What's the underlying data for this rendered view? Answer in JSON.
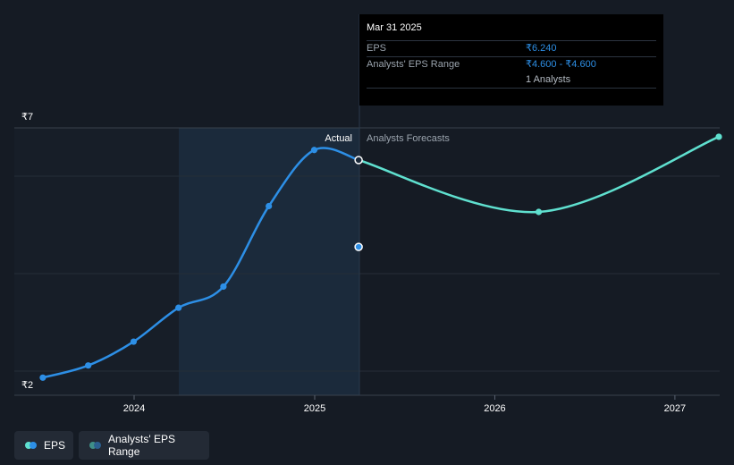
{
  "colors": {
    "background": "#151b24",
    "actual_line": "#2d8fe6",
    "forecast_line": "#5fe0cf",
    "range_marker": "#2d8fe6",
    "gridline": "#2a313b",
    "actual_band": "#1b2a3b"
  },
  "chart_data": {
    "type": "line",
    "y_ticks": [
      "₹7",
      "₹2"
    ],
    "ylim": [
      2,
      7
    ],
    "x_ticks": [
      "2024",
      "2025",
      "2026",
      "2027"
    ],
    "divider_labels": {
      "actual": "Actual",
      "forecast": "Analysts Forecasts"
    },
    "series": [
      {
        "name": "EPS",
        "kind": "actual",
        "points": [
          {
            "x": "2023-06-30",
            "y": 2.13
          },
          {
            "x": "2023-09-30",
            "y": 2.36
          },
          {
            "x": "2023-12-31",
            "y": 2.81
          },
          {
            "x": "2024-03-31",
            "y": 3.45
          },
          {
            "x": "2024-06-30",
            "y": 3.85
          },
          {
            "x": "2024-09-30",
            "y": 5.37
          },
          {
            "x": "2024-12-31",
            "y": 6.43
          },
          {
            "x": "2025-03-31",
            "y": 6.24
          }
        ]
      },
      {
        "name": "EPS",
        "kind": "forecast",
        "points": [
          {
            "x": "2025-03-31",
            "y": 6.24
          },
          {
            "x": "2026-03-31",
            "y": 5.26
          },
          {
            "x": "2027-03-31",
            "y": 6.68
          }
        ]
      },
      {
        "name": "Analysts' EPS Range",
        "kind": "range",
        "points": [
          {
            "x": "2025-03-31",
            "low": 4.6,
            "high": 4.6
          }
        ]
      }
    ]
  },
  "tooltip": {
    "date": "Mar 31 2025",
    "eps_label": "EPS",
    "eps_value": "₹6.240",
    "range_label": "Analysts' EPS Range",
    "range_value": "₹4.600 - ₹4.600",
    "analysts": "1 Analysts"
  },
  "legend": {
    "eps_label": "EPS",
    "range_label": "Analysts' EPS Range"
  }
}
